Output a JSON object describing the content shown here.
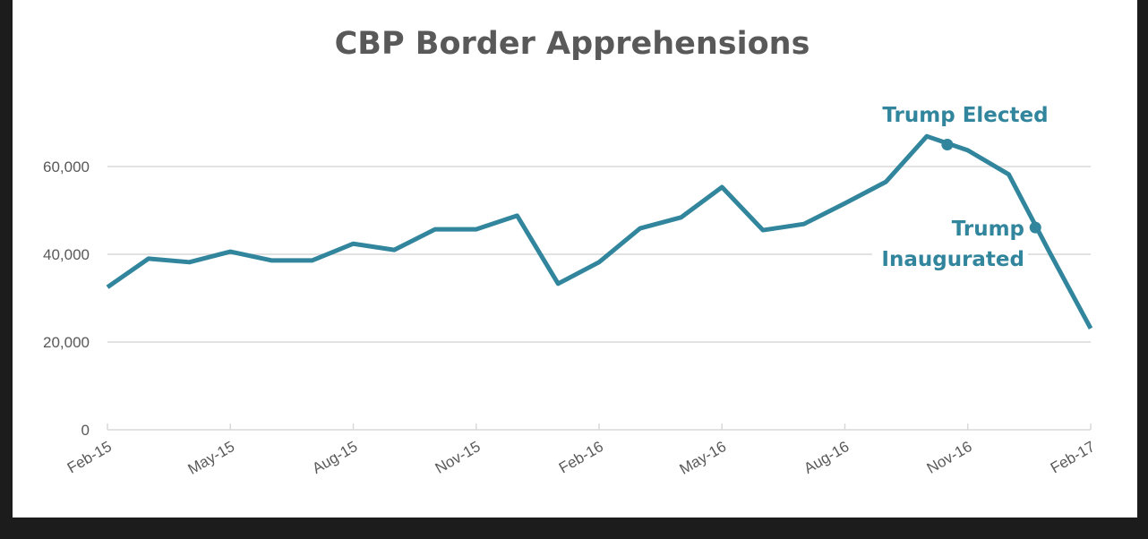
{
  "chart_data": {
    "type": "line",
    "title": "CBP Border Apprehensions",
    "xlabel": "",
    "ylabel": "",
    "ylim": [
      0,
      70000
    ],
    "yticks": [
      0,
      20000,
      40000,
      60000
    ],
    "ytick_labels": [
      "0",
      "20,000",
      "40,000",
      "60,000"
    ],
    "grid": true,
    "legend": "none",
    "x": [
      "Feb-15",
      "Mar-15",
      "Apr-15",
      "May-15",
      "Jun-15",
      "Jul-15",
      "Aug-15",
      "Sep-15",
      "Oct-15",
      "Nov-15",
      "Dec-15",
      "Jan-16",
      "Feb-16",
      "Mar-16",
      "Apr-16",
      "May-16",
      "Jun-16",
      "Jul-16",
      "Aug-16",
      "Sep-16",
      "Oct-16",
      "Nov-16",
      "Dec-16",
      "Jan-17",
      "Feb-17"
    ],
    "xtick_labels": [
      "Feb-15",
      "May-15",
      "Aug-15",
      "Nov-15",
      "Feb-16",
      "May-16",
      "Aug-16",
      "Nov-16",
      "Feb-17"
    ],
    "series": [
      {
        "values": [
          32500,
          39000,
          38200,
          40600,
          38600,
          38600,
          42400,
          41000,
          45700,
          45700,
          48800,
          33300,
          38200,
          45900,
          48400,
          55300,
          45500,
          46900,
          51600,
          56500,
          66900,
          63700,
          58200,
          40400,
          23100
        ]
      }
    ],
    "annotations": [
      {
        "text": "Trump Elected",
        "month_index": 20.5,
        "value": 65000
      },
      {
        "text_lines": [
          "Trump",
          "Inaugurated"
        ],
        "month_index": 22.65,
        "value": 46100
      }
    ],
    "colors": {
      "line": "#31859c",
      "grid": "#d9d9d9",
      "text": "#595959"
    }
  }
}
